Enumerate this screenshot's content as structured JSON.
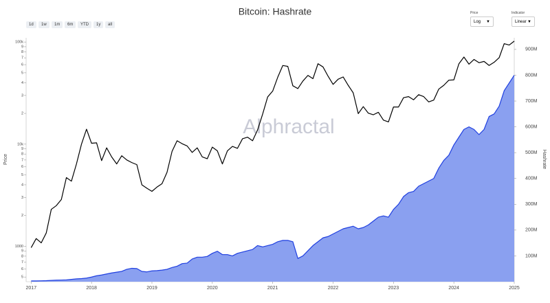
{
  "controls": {
    "range_buttons": [
      "1d",
      "1w",
      "1m",
      "6m",
      "YTD",
      "1y",
      "all"
    ],
    "price_scale": {
      "label": "Price",
      "value": "Log"
    },
    "indicator": {
      "label": "Indicator",
      "value": "Linear"
    }
  },
  "watermark": "Alphractal",
  "chart_data": {
    "type": "line",
    "title": "Bitcoin: Hashrate",
    "x": [
      "2017-01",
      "2017-02",
      "2017-03",
      "2017-04",
      "2017-05",
      "2017-06",
      "2017-07",
      "2017-08",
      "2017-09",
      "2017-10",
      "2017-11",
      "2017-12",
      "2018-01",
      "2018-02",
      "2018-03",
      "2018-04",
      "2018-05",
      "2018-06",
      "2018-07",
      "2018-08",
      "2018-09",
      "2018-10",
      "2018-11",
      "2018-12",
      "2019-01",
      "2019-02",
      "2019-03",
      "2019-04",
      "2019-05",
      "2019-06",
      "2019-07",
      "2019-08",
      "2019-09",
      "2019-10",
      "2019-11",
      "2019-12",
      "2020-01",
      "2020-02",
      "2020-03",
      "2020-04",
      "2020-05",
      "2020-06",
      "2020-07",
      "2020-08",
      "2020-09",
      "2020-10",
      "2020-11",
      "2020-12",
      "2021-01",
      "2021-02",
      "2021-03",
      "2021-04",
      "2021-05",
      "2021-06",
      "2021-07",
      "2021-08",
      "2021-09",
      "2021-10",
      "2021-11",
      "2021-12",
      "2022-01",
      "2022-02",
      "2022-03",
      "2022-04",
      "2022-05",
      "2022-06",
      "2022-07",
      "2022-08",
      "2022-09",
      "2022-10",
      "2022-11",
      "2022-12",
      "2023-01",
      "2023-02",
      "2023-03",
      "2023-04",
      "2023-05",
      "2023-06",
      "2023-07",
      "2023-08",
      "2023-09",
      "2023-10",
      "2023-11",
      "2023-12",
      "2024-01",
      "2024-02",
      "2024-03",
      "2024-04",
      "2024-05",
      "2024-06",
      "2024-07",
      "2024-08",
      "2024-09",
      "2024-10",
      "2024-11",
      "2024-12",
      "2025-01"
    ],
    "series": [
      {
        "name": "Price",
        "color": "#000000",
        "axis": "y",
        "values": [
          970,
          1190,
          1080,
          1350,
          2300,
          2500,
          2870,
          4700,
          4340,
          6400,
          10000,
          14000,
          10200,
          10300,
          6900,
          9200,
          7500,
          6400,
          7700,
          7000,
          6600,
          6300,
          4000,
          3700,
          3450,
          3800,
          4100,
          5300,
          8500,
          10800,
          10100,
          9600,
          8300,
          9200,
          7500,
          7200,
          9350,
          8600,
          6400,
          8600,
          9500,
          9100,
          11300,
          11700,
          10800,
          13800,
          19700,
          29000,
          33100,
          45200,
          58900,
          57700,
          37300,
          35000,
          41500,
          47100,
          43800,
          61300,
          57000,
          46300,
          38500,
          43200,
          45500,
          37700,
          31800,
          19900,
          23300,
          20100,
          19400,
          20500,
          17200,
          16500,
          23100,
          23100,
          28500,
          29200,
          27200,
          30500,
          29200,
          25900,
          27000,
          34600,
          37700,
          42300,
          42600,
          61200,
          71300,
          60700,
          67500,
          62700,
          64600,
          59000,
          63300,
          70200,
          96400,
          93400,
          102000
        ]
      },
      {
        "name": "Hashrate",
        "color": "#1f3fe0",
        "fill": "#8aa0f0",
        "axis": "y2",
        "values": [
          3000000,
          3000000,
          3500000,
          4000000,
          5000000,
          6000000,
          6500000,
          7000000,
          9000000,
          11000000,
          12000000,
          14000000,
          18000000,
          23000000,
          26000000,
          30000000,
          34000000,
          37000000,
          40000000,
          48000000,
          52000000,
          51000000,
          40000000,
          38000000,
          42000000,
          43000000,
          45000000,
          48000000,
          55000000,
          60000000,
          70000000,
          72000000,
          88000000,
          95000000,
          95000000,
          98000000,
          110000000,
          118000000,
          105000000,
          105000000,
          100000000,
          110000000,
          115000000,
          120000000,
          125000000,
          140000000,
          135000000,
          140000000,
          145000000,
          155000000,
          160000000,
          160000000,
          155000000,
          90000000,
          100000000,
          120000000,
          140000000,
          155000000,
          170000000,
          175000000,
          185000000,
          195000000,
          205000000,
          210000000,
          215000000,
          205000000,
          210000000,
          220000000,
          235000000,
          250000000,
          255000000,
          250000000,
          280000000,
          300000000,
          330000000,
          345000000,
          350000000,
          370000000,
          380000000,
          390000000,
          400000000,
          440000000,
          470000000,
          490000000,
          530000000,
          560000000,
          590000000,
          600000000,
          590000000,
          570000000,
          590000000,
          640000000,
          650000000,
          680000000,
          740000000,
          770000000,
          800000000
        ]
      }
    ],
    "xlim": [
      "2016-12",
      "2025-01"
    ],
    "xticks": [
      {
        "value": "2017-01",
        "label": "2017"
      },
      {
        "value": "2018-01",
        "label": "2018"
      },
      {
        "value": "2019-01",
        "label": "2019"
      },
      {
        "value": "2020-01",
        "label": "2020"
      },
      {
        "value": "2021-01",
        "label": "2021"
      },
      {
        "value": "2022-01",
        "label": "2022"
      },
      {
        "value": "2023-01",
        "label": "2023"
      },
      {
        "value": "2024-01",
        "label": "2024"
      },
      {
        "value": "2025-01",
        "label": "2025"
      }
    ],
    "ylog": true,
    "ylim": [
      450,
      110000
    ],
    "yticks": [
      {
        "value": 100000,
        "label": "100k"
      },
      {
        "value": 90000,
        "label": "9"
      },
      {
        "value": 80000,
        "label": "8"
      },
      {
        "value": 70000,
        "label": "7"
      },
      {
        "value": 60000,
        "label": "6"
      },
      {
        "value": 50000,
        "label": "5"
      },
      {
        "value": 40000,
        "label": "4"
      },
      {
        "value": 30000,
        "label": "3"
      },
      {
        "value": 20000,
        "label": "2"
      },
      {
        "value": 10000,
        "label": "10k"
      },
      {
        "value": 9000,
        "label": "9"
      },
      {
        "value": 8000,
        "label": "8"
      },
      {
        "value": 7000,
        "label": "7"
      },
      {
        "value": 6000,
        "label": "6"
      },
      {
        "value": 5000,
        "label": "5"
      },
      {
        "value": 4000,
        "label": "4"
      },
      {
        "value": 3000,
        "label": "3"
      },
      {
        "value": 2000,
        "label": "2"
      },
      1000,
      {
        "value": 900,
        "label": "9"
      },
      {
        "value": 800,
        "label": "8"
      },
      {
        "value": 700,
        "label": "7"
      },
      {
        "value": 600,
        "label": "6"
      },
      {
        "value": 500,
        "label": "5"
      }
    ],
    "y2lim": [
      0,
      945000000
    ],
    "y2ticks": [
      {
        "value": 100000000,
        "label": "100M"
      },
      {
        "value": 200000000,
        "label": "200M"
      },
      {
        "value": 300000000,
        "label": "300M"
      },
      {
        "value": 400000000,
        "label": "400M"
      },
      {
        "value": 500000000,
        "label": "500M"
      },
      {
        "value": 600000000,
        "label": "600M"
      },
      {
        "value": 700000000,
        "label": "700M"
      },
      {
        "value": 800000000,
        "label": "800M"
      },
      {
        "value": 900000000,
        "label": "900M"
      }
    ]
  }
}
